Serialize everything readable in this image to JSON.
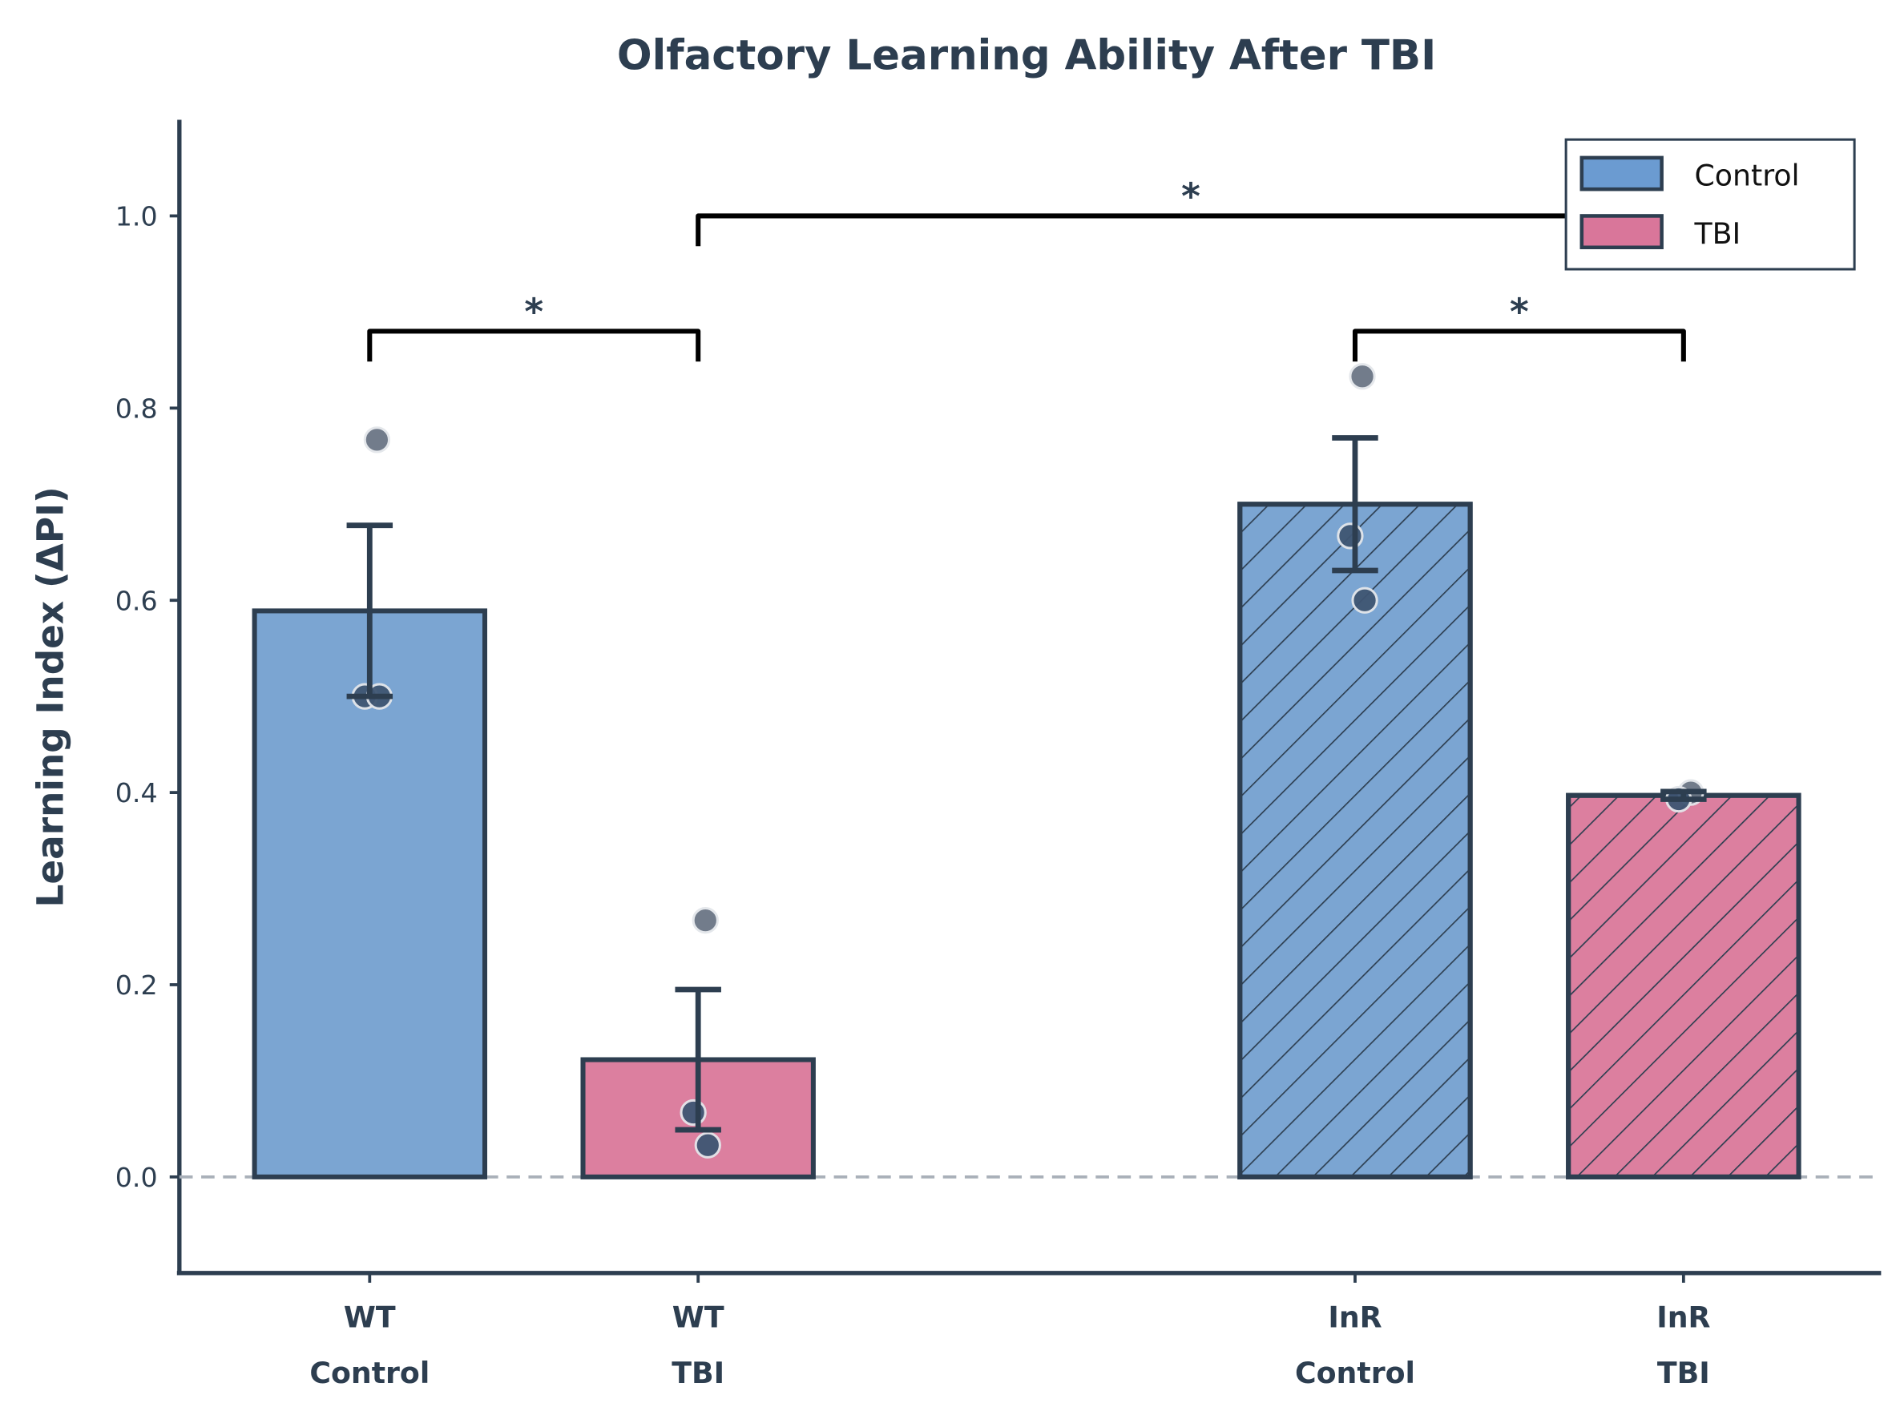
{
  "chart_data": {
    "type": "bar",
    "title": "Olfactory Learning Ability After TBI",
    "xlabel": "",
    "ylabel": "Learning Index (ΔPI)",
    "ylim": [
      -0.1,
      1.1
    ],
    "yticks": [
      "0.0",
      "0.2",
      "0.4",
      "0.6",
      "0.8",
      "1.0"
    ],
    "categories": [
      {
        "line1": "WT",
        "line2": "Control"
      },
      {
        "line1": "WT",
        "line2": "TBI"
      },
      {
        "line1": "InR",
        "line2": "Control"
      },
      {
        "line1": "InR",
        "line2": "TBI"
      }
    ],
    "bars": [
      {
        "group": "Control",
        "value": 0.589,
        "sem": 0.089,
        "hatched": false,
        "points": [
          0.767,
          0.5,
          0.5
        ]
      },
      {
        "group": "TBI",
        "value": 0.122,
        "sem": 0.073,
        "hatched": false,
        "points": [
          0.267,
          0.067,
          0.033
        ]
      },
      {
        "group": "Control",
        "value": 0.7,
        "sem": 0.069,
        "hatched": true,
        "points": [
          0.833,
          0.667,
          0.6
        ]
      },
      {
        "group": "TBI",
        "value": 0.397,
        "sem": 0.004,
        "hatched": true,
        "points": [
          0.4,
          0.393
        ]
      }
    ],
    "reference_line": 0,
    "significance": [
      {
        "from": 0,
        "to": 1,
        "y": 0.88,
        "label": "*"
      },
      {
        "from": 1,
        "to": 3,
        "y": 1.0,
        "label": "*"
      },
      {
        "from": 2,
        "to": 3,
        "y": 0.88,
        "label": "*"
      }
    ],
    "legend": {
      "placement": "top-right",
      "entries": [
        {
          "label": "Control",
          "color": "#6b9bd1"
        },
        {
          "label": "TBI",
          "color": "#d9769a"
        }
      ]
    },
    "colors": {
      "Control": "#7ba5d2",
      "TBI": "#dc7f9f",
      "edge": "#2d3e50",
      "text": "#2d3e50"
    }
  }
}
